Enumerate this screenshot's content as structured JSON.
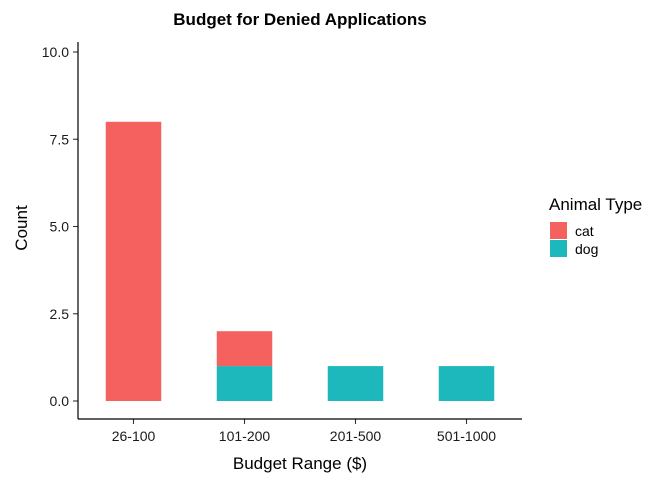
{
  "chart_data": {
    "type": "bar",
    "stacked": true,
    "title": "Budget for Denied Applications",
    "xlabel": "Budget Range ($)",
    "ylabel": "Count",
    "categories": [
      "26-100",
      "101-200",
      "201-500",
      "501-1000"
    ],
    "ylim": [
      0,
      10.5
    ],
    "yticks": [
      0,
      2.5,
      5,
      7.5,
      10
    ],
    "ytick_labels": [
      "0.0",
      "2.5",
      "5.0",
      "7.5",
      "10.0"
    ],
    "grid": false,
    "legend": {
      "title": "Animal Type",
      "position": "right"
    },
    "series": [
      {
        "name": "dog",
        "color": "#1CB8BB",
        "values": [
          0,
          1,
          1,
          1
        ]
      },
      {
        "name": "cat",
        "color": "#F4615E",
        "values": [
          8,
          1,
          0,
          0
        ]
      }
    ],
    "legend_order": [
      "cat",
      "dog"
    ]
  }
}
